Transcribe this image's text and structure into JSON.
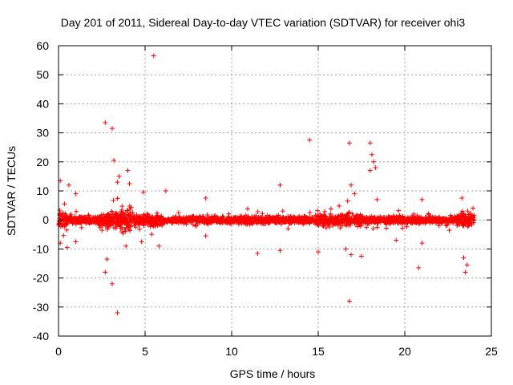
{
  "chart_data": {
    "type": "scatter",
    "title": "Day 201 of 2011, Sidereal Day-to-day VTEC variation (SDTVAR) for receiver ohi3",
    "xlabel": "GPS time / hours",
    "ylabel": "SDTVAR / TECUs",
    "xlim": [
      0,
      25
    ],
    "ylim": [
      -40,
      60
    ],
    "xticks": [
      "0",
      "5",
      "10",
      "15",
      "20",
      "25"
    ],
    "yticks": [
      "-40",
      "-30",
      "-20",
      "-10",
      "0",
      "10",
      "20",
      "30",
      "40",
      "50",
      "60"
    ],
    "grid": true,
    "legend": "none",
    "marker": "plus",
    "color": "#ff0000",
    "series": [
      {
        "name": "SDTVAR",
        "note": "dense band of several thousand samples between about -5 and +5 TECU over 0-24 h; outliers listed",
        "outliers": [
          [
            5.5,
            56.5
          ],
          [
            2.7,
            33.5
          ],
          [
            3.1,
            31.5
          ],
          [
            3.2,
            20.5
          ],
          [
            3.4,
            13.0
          ],
          [
            3.5,
            15.0
          ],
          [
            4.0,
            17.0
          ],
          [
            4.1,
            12.5
          ],
          [
            0.6,
            12.0
          ],
          [
            0.1,
            13.5
          ],
          [
            1.0,
            9.0
          ],
          [
            4.9,
            9.5
          ],
          [
            6.2,
            10.0
          ],
          [
            8.5,
            7.5
          ],
          [
            12.8,
            12.0
          ],
          [
            14.5,
            27.5
          ],
          [
            16.8,
            26.5
          ],
          [
            16.9,
            12.0
          ],
          [
            17.1,
            9.0
          ],
          [
            16.7,
            6.5
          ],
          [
            18.0,
            26.5
          ],
          [
            18.1,
            22.5
          ],
          [
            18.2,
            20.0
          ],
          [
            18.0,
            17.0
          ],
          [
            18.3,
            18.0
          ],
          [
            18.4,
            7.0
          ],
          [
            21.0,
            7.0
          ],
          [
            23.3,
            7.5
          ],
          [
            2.7,
            -18.0
          ],
          [
            2.8,
            -13.5
          ],
          [
            3.1,
            -22.0
          ],
          [
            3.4,
            -32.0
          ],
          [
            16.8,
            -28.0
          ],
          [
            16.9,
            -12.0
          ],
          [
            17.5,
            -12.5
          ],
          [
            20.8,
            -16.5
          ],
          [
            23.6,
            -15.5
          ],
          [
            23.5,
            -18.0
          ],
          [
            0.1,
            -8.0
          ],
          [
            0.5,
            -9.5
          ],
          [
            1.0,
            -7.5
          ],
          [
            3.9,
            -9.0
          ],
          [
            4.8,
            -7.5
          ],
          [
            5.8,
            -9.0
          ],
          [
            11.5,
            -11.5
          ],
          [
            12.8,
            -10.5
          ],
          [
            15.0,
            -11.0
          ],
          [
            16.6,
            -10.0
          ],
          [
            21.0,
            -8.0
          ],
          [
            23.4,
            -13.0
          ],
          [
            19.5,
            -7.0
          ],
          [
            8.5,
            -5.5
          ]
        ]
      }
    ]
  }
}
